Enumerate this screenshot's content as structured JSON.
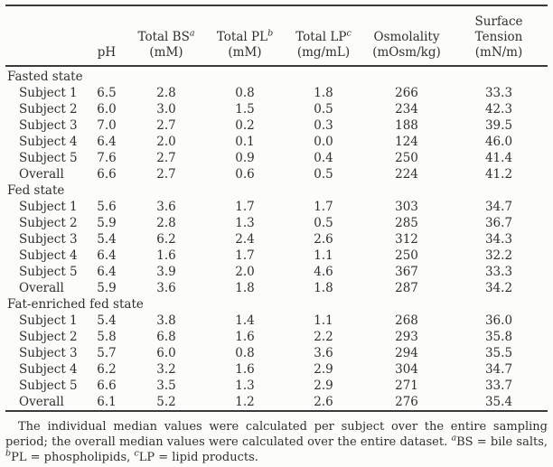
{
  "page": {
    "background": "#fcfcfa",
    "text_color": "#2f2f2f",
    "rule_color": "#3a3a3a"
  },
  "table": {
    "columns": [
      {
        "line1": "",
        "sup": "",
        "line2": "pH"
      },
      {
        "line1": "Total BS",
        "sup": "a",
        "line2": "(mM)"
      },
      {
        "line1": "Total PL",
        "sup": "b",
        "line2": "(mM)"
      },
      {
        "line1": "Total LP",
        "sup": "c",
        "line2": "(mg/mL)"
      },
      {
        "line1": "Osmolality",
        "sup": "",
        "line2": "(mOsm/kg)"
      },
      {
        "line1": "Surface",
        "sup": "",
        "line2": "Tension (mN/m)"
      }
    ],
    "sections": [
      {
        "name": "Fasted state",
        "rows": [
          {
            "label": "Subject 1",
            "values": [
              "6.5",
              "2.8",
              "0.8",
              "1.8",
              "266",
              "33.3"
            ]
          },
          {
            "label": "Subject 2",
            "values": [
              "6.0",
              "3.0",
              "1.5",
              "0.5",
              "234",
              "42.3"
            ]
          },
          {
            "label": "Subject 3",
            "values": [
              "7.0",
              "2.7",
              "0.2",
              "0.3",
              "188",
              "39.5"
            ]
          },
          {
            "label": "Subject 4",
            "values": [
              "6.4",
              "2.0",
              "0.1",
              "0.0",
              "124",
              "46.0"
            ]
          },
          {
            "label": "Subject 5",
            "values": [
              "7.6",
              "2.7",
              "0.9",
              "0.4",
              "250",
              "41.4"
            ]
          },
          {
            "label": "Overall",
            "values": [
              "6.6",
              "2.7",
              "0.6",
              "0.5",
              "224",
              "41.2"
            ]
          }
        ]
      },
      {
        "name": "Fed state",
        "rows": [
          {
            "label": "Subject 1",
            "values": [
              "5.6",
              "3.6",
              "1.7",
              "1.7",
              "303",
              "34.7"
            ]
          },
          {
            "label": "Subject 2",
            "values": [
              "5.9",
              "2.8",
              "1.3",
              "0.5",
              "285",
              "36.7"
            ]
          },
          {
            "label": "Subject 3",
            "values": [
              "5.4",
              "6.2",
              "2.4",
              "2.6",
              "312",
              "34.3"
            ]
          },
          {
            "label": "Subject 4",
            "values": [
              "6.4",
              "1.6",
              "1.7",
              "1.1",
              "250",
              "32.2"
            ]
          },
          {
            "label": "Subject 5",
            "values": [
              "6.4",
              "3.9",
              "2.0",
              "4.6",
              "367",
              "33.3"
            ]
          },
          {
            "label": "Overall",
            "values": [
              "5.9",
              "3.6",
              "1.8",
              "1.8",
              "287",
              "34.2"
            ]
          }
        ]
      },
      {
        "name": "Fat-enriched fed state",
        "rows": [
          {
            "label": "Subject 1",
            "values": [
              "5.4",
              "3.8",
              "1.4",
              "1.1",
              "268",
              "36.0"
            ]
          },
          {
            "label": "Subject 2",
            "values": [
              "5.8",
              "6.8",
              "1.6",
              "2.2",
              "293",
              "35.8"
            ]
          },
          {
            "label": "Subject 3",
            "values": [
              "5.7",
              "6.0",
              "0.8",
              "3.6",
              "294",
              "35.5"
            ]
          },
          {
            "label": "Subject 4",
            "values": [
              "6.2",
              "3.2",
              "1.6",
              "2.9",
              "304",
              "34.7"
            ]
          },
          {
            "label": "Subject 5",
            "values": [
              "6.6",
              "3.5",
              "1.3",
              "2.9",
              "271",
              "33.7"
            ]
          },
          {
            "label": "Overall",
            "values": [
              "6.1",
              "5.2",
              "1.2",
              "2.6",
              "276",
              "35.4"
            ]
          }
        ]
      }
    ]
  },
  "footnote": {
    "main": "The individual median values were calculated per subject over the entire sampling period; the overall median values were calculated over the entire dataset.",
    "abbrev_a_sup": "a",
    "abbrev_a": "BS = bile salts,",
    "abbrev_b_sup": "b",
    "abbrev_b": "PL = phospholipids,",
    "abbrev_c_sup": "c",
    "abbrev_c": "LP = lipid products."
  }
}
